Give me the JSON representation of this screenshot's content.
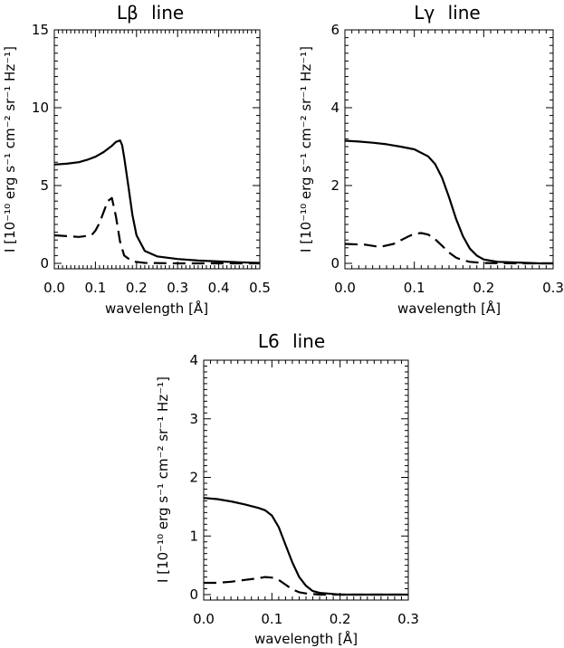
{
  "chart_data": [
    {
      "type": "line",
      "title_main": "Lβ",
      "title_suffix": "line",
      "xlabel": "wavelength [Å]",
      "ylabel": "I [10⁻¹⁰ erg s⁻¹ cm⁻² sr⁻¹ Hz⁻¹]",
      "xlim": [
        0,
        0.5
      ],
      "ylim": [
        0,
        15
      ],
      "xticks": [
        0.0,
        0.1,
        0.2,
        0.3,
        0.4,
        0.5
      ],
      "xtick_labels": [
        "0.0",
        "0.1",
        "0.2",
        "0.3",
        "0.4",
        "0.5"
      ],
      "yticks": [
        0,
        5,
        10,
        15
      ],
      "ytick_labels": [
        "0",
        "5",
        "10",
        "15"
      ],
      "series": [
        {
          "style": "solid",
          "x": [
            0,
            0.03,
            0.06,
            0.08,
            0.1,
            0.12,
            0.14,
            0.15,
            0.16,
            0.165,
            0.17,
            0.18,
            0.19,
            0.2,
            0.22,
            0.25,
            0.3,
            0.35,
            0.4,
            0.45,
            0.5
          ],
          "y": [
            6.35,
            6.4,
            6.5,
            6.65,
            6.85,
            7.15,
            7.55,
            7.8,
            7.9,
            7.6,
            6.8,
            5.0,
            3.1,
            1.8,
            0.8,
            0.45,
            0.28,
            0.18,
            0.12,
            0.07,
            0.03
          ]
        },
        {
          "style": "dashed",
          "x": [
            0,
            0.03,
            0.06,
            0.09,
            0.1,
            0.11,
            0.12,
            0.13,
            0.14,
            0.15,
            0.16,
            0.17,
            0.19,
            0.22,
            0.3,
            0.4,
            0.5
          ],
          "y": [
            1.8,
            1.75,
            1.7,
            1.8,
            2.1,
            2.6,
            3.3,
            4.0,
            4.2,
            3.0,
            1.4,
            0.5,
            0.12,
            0.03,
            0.0,
            0.0,
            0.0
          ]
        }
      ]
    },
    {
      "type": "line",
      "title_main": "Lγ",
      "title_suffix": "line",
      "xlabel": "wavelength [Å]",
      "ylabel": "I [10⁻¹⁰ erg s⁻¹ cm⁻² sr⁻¹ Hz⁻¹]",
      "xlim": [
        0,
        0.3
      ],
      "ylim": [
        0,
        6
      ],
      "xticks": [
        0.0,
        0.1,
        0.2,
        0.3
      ],
      "xtick_labels": [
        "0.0",
        "0.1",
        "0.2",
        "0.3"
      ],
      "yticks": [
        0,
        2,
        4,
        6
      ],
      "ytick_labels": [
        "0",
        "2",
        "4",
        "6"
      ],
      "series": [
        {
          "style": "solid",
          "x": [
            0,
            0.02,
            0.04,
            0.06,
            0.08,
            0.1,
            0.12,
            0.13,
            0.14,
            0.15,
            0.16,
            0.17,
            0.18,
            0.19,
            0.2,
            0.22,
            0.25,
            0.28,
            0.3
          ],
          "y": [
            3.15,
            3.13,
            3.1,
            3.06,
            3.0,
            2.93,
            2.75,
            2.55,
            2.2,
            1.7,
            1.15,
            0.7,
            0.38,
            0.2,
            0.1,
            0.04,
            0.02,
            0.0,
            0.0
          ]
        },
        {
          "style": "dashed",
          "x": [
            0,
            0.03,
            0.05,
            0.07,
            0.09,
            0.1,
            0.11,
            0.12,
            0.13,
            0.14,
            0.15,
            0.16,
            0.17,
            0.18,
            0.2,
            0.25,
            0.3
          ],
          "y": [
            0.5,
            0.48,
            0.42,
            0.5,
            0.68,
            0.76,
            0.78,
            0.74,
            0.62,
            0.45,
            0.28,
            0.15,
            0.08,
            0.04,
            0.01,
            0.0,
            0.0
          ]
        }
      ]
    },
    {
      "type": "line",
      "title_main": "L6",
      "title_suffix": "line",
      "xlabel": "wavelength [Å]",
      "ylabel": "I [10⁻¹⁰ erg s⁻¹ cm⁻² sr⁻¹ Hz⁻¹]",
      "xlim": [
        0,
        0.3
      ],
      "ylim": [
        0,
        4
      ],
      "xticks": [
        0.0,
        0.1,
        0.2,
        0.3
      ],
      "xtick_labels": [
        "0.0",
        "0.1",
        "0.2",
        "0.3"
      ],
      "yticks": [
        0,
        1,
        2,
        3,
        4
      ],
      "ytick_labels": [
        "0",
        "1",
        "2",
        "3",
        "4"
      ],
      "series": [
        {
          "style": "solid",
          "x": [
            0,
            0.02,
            0.04,
            0.06,
            0.08,
            0.09,
            0.1,
            0.11,
            0.12,
            0.13,
            0.14,
            0.15,
            0.16,
            0.17,
            0.18,
            0.2,
            0.25,
            0.3
          ],
          "y": [
            1.65,
            1.63,
            1.59,
            1.54,
            1.48,
            1.44,
            1.35,
            1.15,
            0.85,
            0.55,
            0.3,
            0.15,
            0.06,
            0.03,
            0.02,
            0.0,
            0.0,
            0.0
          ]
        },
        {
          "style": "dashed",
          "x": [
            0,
            0.02,
            0.04,
            0.06,
            0.08,
            0.09,
            0.1,
            0.11,
            0.12,
            0.13,
            0.14,
            0.15,
            0.17,
            0.2,
            0.3
          ],
          "y": [
            0.2,
            0.2,
            0.22,
            0.25,
            0.28,
            0.3,
            0.29,
            0.25,
            0.17,
            0.09,
            0.04,
            0.02,
            0.0,
            0.0,
            0.0
          ]
        }
      ]
    }
  ]
}
